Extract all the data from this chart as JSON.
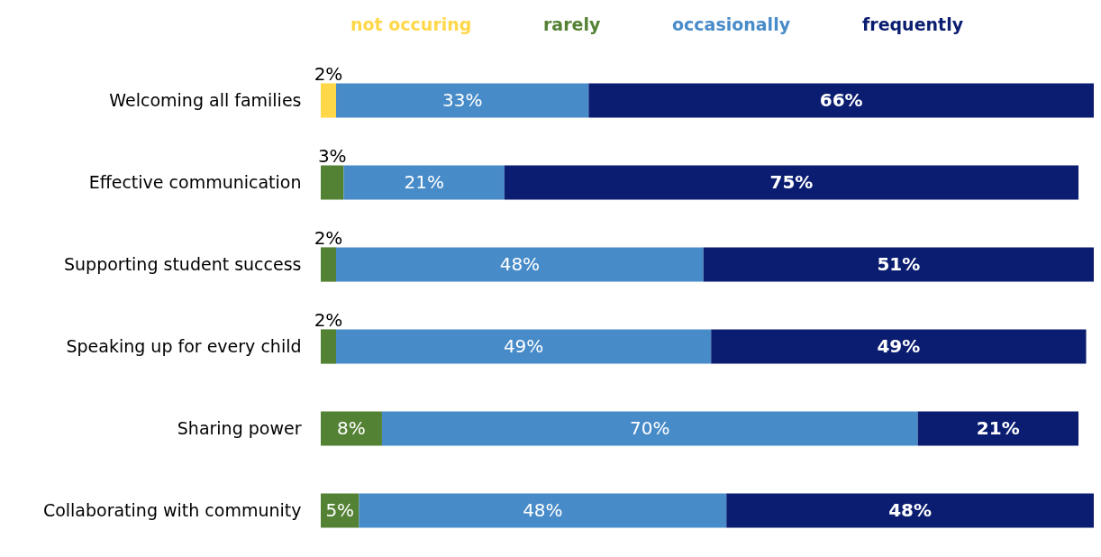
{
  "chart_data": {
    "type": "bar",
    "orientation": "horizontal",
    "stacked": true,
    "legend": "top",
    "categories": [
      "Welcoming all families",
      "Effective communication",
      "Supporting student success",
      "Speaking up for every child",
      "Sharing power",
      "Collaborating with community"
    ],
    "series": [
      {
        "name": "not occuring",
        "color": "#ffd84a",
        "values": [
          2,
          null,
          null,
          null,
          null,
          null
        ],
        "value_labels": [
          "2%",
          null,
          null,
          null,
          null,
          null
        ]
      },
      {
        "name": "rarely",
        "color": "#548235",
        "values": [
          null,
          3,
          2,
          2,
          8,
          5
        ],
        "value_labels": [
          null,
          "3%",
          "2%",
          "2%",
          "8%",
          "5%"
        ]
      },
      {
        "name": "occasionally",
        "color": "#488bc9",
        "values": [
          33,
          21,
          48,
          49,
          70,
          48
        ],
        "value_labels": [
          "33%",
          "21%",
          "48%",
          "49%",
          "70%",
          "48%"
        ]
      },
      {
        "name": "frequently",
        "color": "#0b1d70",
        "values": [
          66,
          75,
          51,
          49,
          21,
          48
        ],
        "value_labels": [
          "66%",
          "75%",
          "51%",
          "49%",
          "21%",
          "48%"
        ]
      }
    ]
  }
}
